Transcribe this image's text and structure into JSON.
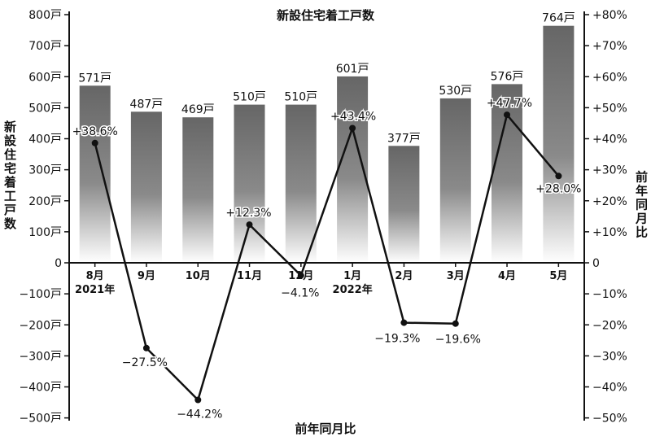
{
  "chart_data": {
    "type": "bar",
    "title": "新設住宅着工戸数",
    "ylabel": "新設住宅着工戸数",
    "y2label": "前年同月比",
    "xlabel": "前年同月比",
    "categories": [
      "8月",
      "9月",
      "10月",
      "11月",
      "12月",
      "1月",
      "2月",
      "3月",
      "4月",
      "5月"
    ],
    "year_labels": [
      "2021年",
      "",
      "",
      "",
      "",
      "2022年",
      "",
      "",
      "",
      ""
    ],
    "series": [
      {
        "name": "新設住宅着工戸数",
        "type": "bar",
        "axis": "left",
        "values": [
          571,
          487,
          469,
          510,
          510,
          601,
          377,
          530,
          576,
          764
        ],
        "labels": [
          "571戸",
          "487戸",
          "469戸",
          "510戸",
          "510戸",
          "601戸",
          "377戸",
          "530戸",
          "576戸",
          "764戸"
        ]
      },
      {
        "name": "前年同月比",
        "type": "line",
        "axis": "right",
        "values": [
          38.6,
          -27.5,
          -44.2,
          12.3,
          -4.1,
          43.4,
          -19.3,
          -19.6,
          47.7,
          28.0
        ],
        "labels": [
          "+38.6%",
          "−27.5%",
          "−44.2%",
          "+12.3%",
          "−4.1%",
          "+43.4%",
          "−19.3%",
          "−19.6%",
          "+47.7%",
          "+28.0%"
        ]
      }
    ],
    "ylim": [
      -500,
      800
    ],
    "y2lim": [
      -50,
      80
    ],
    "yticks": [
      "800戸",
      "700戸",
      "600戸",
      "500戸",
      "400戸",
      "300戸",
      "200戸",
      "100戸",
      "0",
      "−100戸",
      "−200戸",
      "−300戸",
      "−400戸",
      "−500戸"
    ],
    "y2ticks": [
      "+80%",
      "+70%",
      "+60%",
      "+50%",
      "+40%",
      "+30%",
      "+20%",
      "+10%",
      "0",
      "−10%",
      "−20%",
      "−30%",
      "−40%",
      "−50%"
    ],
    "grid": false,
    "legend": "none",
    "colors": {
      "bar_top": "#666666",
      "bar_bottom": "#ffffff",
      "line": "#111111",
      "axis": "#111111"
    }
  }
}
